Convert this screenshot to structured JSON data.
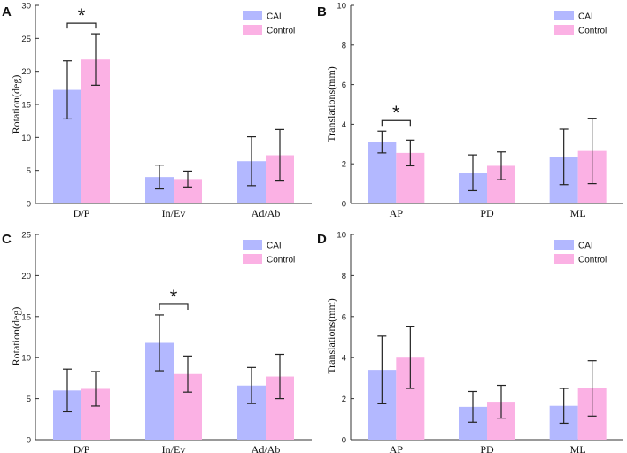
{
  "colors": {
    "cai": "#b3b8ff",
    "control": "#fbb1e4",
    "axis": "#333333",
    "error": "#222222"
  },
  "chart_data": [
    {
      "id": "A",
      "type": "bar",
      "panel_label": "A",
      "ylabel": "Rotation(deg)",
      "ylim": [
        0,
        30
      ],
      "yticks": [
        0,
        5,
        10,
        15,
        20,
        25,
        30
      ],
      "categories": [
        "D/P",
        "In/Ev",
        "Ad/Ab"
      ],
      "series": [
        {
          "name": "CAI",
          "values": [
            17.2,
            4.0,
            6.4
          ],
          "errors": [
            4.4,
            1.8,
            3.7
          ]
        },
        {
          "name": "Control",
          "values": [
            21.8,
            3.7,
            7.3
          ],
          "errors": [
            3.9,
            1.2,
            3.9
          ]
        }
      ],
      "legend": [
        "CAI",
        "Control"
      ],
      "legend_position": "top-right",
      "significance": [
        {
          "category_index": 0,
          "label": "*"
        }
      ]
    },
    {
      "id": "B",
      "type": "bar",
      "panel_label": "B",
      "ylabel": "Translations(mm)",
      "ylim": [
        0,
        10
      ],
      "yticks": [
        0,
        2,
        4,
        6,
        8,
        10
      ],
      "categories": [
        "AP",
        "PD",
        "ML"
      ],
      "series": [
        {
          "name": "CAI",
          "values": [
            3.1,
            1.55,
            2.35
          ],
          "errors": [
            0.55,
            0.9,
            1.4
          ]
        },
        {
          "name": "Control",
          "values": [
            2.55,
            1.9,
            2.65
          ],
          "errors": [
            0.65,
            0.7,
            1.65
          ]
        }
      ],
      "legend": [
        "CAI",
        "Control"
      ],
      "legend_position": "top-right",
      "significance": [
        {
          "category_index": 0,
          "label": "*"
        }
      ]
    },
    {
      "id": "C",
      "type": "bar",
      "panel_label": "C",
      "ylabel": "Rotation(deg)",
      "ylim": [
        0,
        25
      ],
      "yticks": [
        0,
        5,
        10,
        15,
        20,
        25
      ],
      "categories": [
        "D/P",
        "In/Ev",
        "Ad/Ab"
      ],
      "series": [
        {
          "name": "CAI",
          "values": [
            6.0,
            11.8,
            6.6
          ],
          "errors": [
            2.6,
            3.4,
            2.2
          ]
        },
        {
          "name": "Control",
          "values": [
            6.2,
            8.0,
            7.7
          ],
          "errors": [
            2.1,
            2.2,
            2.7
          ]
        }
      ],
      "legend": [
        "CAI",
        "Control"
      ],
      "legend_position": "top-right",
      "significance": [
        {
          "category_index": 1,
          "label": "*"
        }
      ]
    },
    {
      "id": "D",
      "type": "bar",
      "panel_label": "D",
      "ylabel": "Translations(mm)",
      "ylim": [
        0,
        10
      ],
      "yticks": [
        0,
        2,
        4,
        6,
        8,
        10
      ],
      "categories": [
        "AP",
        "PD",
        "ML"
      ],
      "series": [
        {
          "name": "CAI",
          "values": [
            3.4,
            1.6,
            1.65
          ],
          "errors": [
            1.65,
            0.75,
            0.85
          ]
        },
        {
          "name": "Control",
          "values": [
            4.0,
            1.85,
            2.5
          ],
          "errors": [
            1.5,
            0.8,
            1.35
          ]
        }
      ],
      "legend": [
        "CAI",
        "Control"
      ],
      "legend_position": "top-right",
      "significance": []
    }
  ]
}
